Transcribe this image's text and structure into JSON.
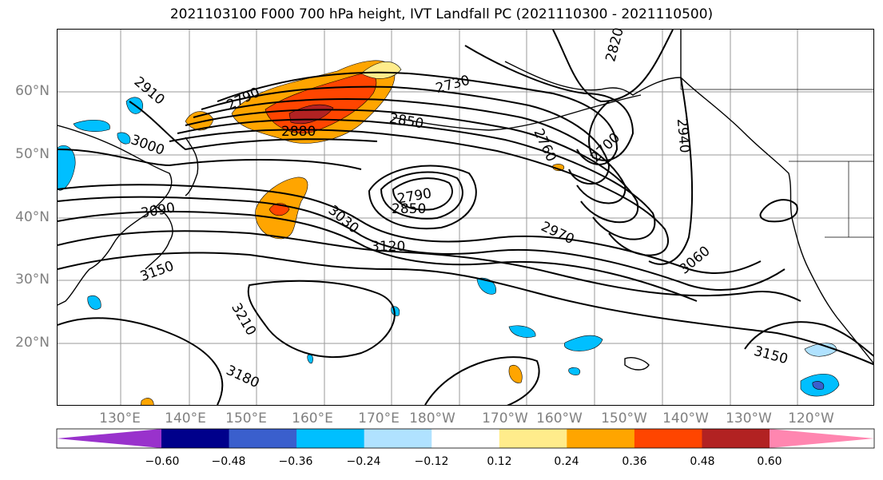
{
  "title": "2021103100 F000 700 hPa height, IVT Landfall PC (2021110300 - 2021110500)",
  "latitude_labels": [
    "60°N",
    "50°N",
    "40°N",
    "30°N",
    "20°N"
  ],
  "longitude_labels": [
    "130°E",
    "140°E",
    "150°E",
    "160°E",
    "170°E",
    "180°W",
    "170°W",
    "160°W",
    "150°W",
    "140°W",
    "130°W",
    "120°W"
  ],
  "contour_labels": [
    "2910",
    "3000",
    "3090",
    "3150",
    "2790",
    "2880",
    "2730",
    "2850",
    "2760",
    "2820",
    "2700",
    "2940",
    "2790",
    "2850",
    "3030",
    "3120",
    "2970",
    "3060",
    "3210",
    "3180",
    "3150"
  ],
  "colorbar": {
    "tick_labels": [
      "−0.60",
      "−0.48",
      "−0.36",
      "−0.24",
      "−0.12",
      "0.12",
      "0.24",
      "0.36",
      "0.48",
      "0.60"
    ],
    "colors": [
      "#9932cc",
      "#00008b",
      "#3a5fcd",
      "#00bfff",
      "#b0e2ff",
      "#ffffff",
      "#ffec8b",
      "#ffa500",
      "#ff4500",
      "#b22222",
      "#ff86b0"
    ]
  },
  "colors": {
    "contour": "#000000",
    "grid": "#9a9a9a",
    "label_gray": "#808080"
  }
}
